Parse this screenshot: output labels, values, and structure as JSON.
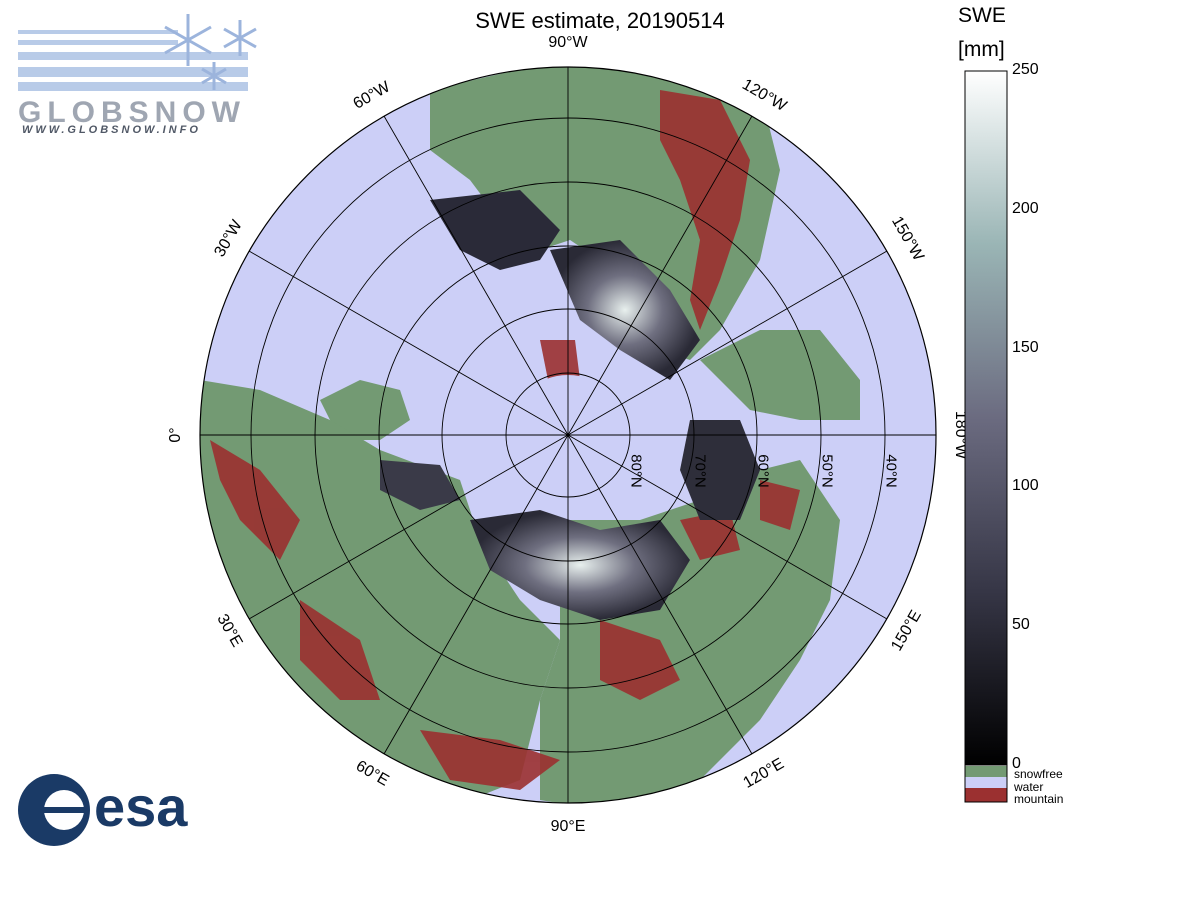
{
  "title": "SWE estimate, 20190514",
  "colorbar": {
    "title_line1": "SWE",
    "title_line2": "[mm]",
    "ticks": [
      "250",
      "200",
      "150",
      "100",
      "50",
      "0"
    ],
    "legend": [
      "snowfree",
      "water",
      "mountain"
    ]
  },
  "map": {
    "projection": "north polar stereographic",
    "longitude_labels": [
      "90°W",
      "120°W",
      "150°W",
      "180°W",
      "150°E",
      "120°E",
      "90°E",
      "60°E",
      "30°E",
      "0°",
      "30°W",
      "60°W"
    ],
    "latitude_labels": [
      "80°N",
      "70°N",
      "60°N",
      "50°N",
      "40°N"
    ],
    "colors": {
      "water": "#cccff7",
      "snowfree": "#739a73",
      "mountain": "#9b3030",
      "snow_low": "#101018",
      "snow_high": "#ffffff"
    }
  },
  "logos": {
    "globsnow_text": "GLOBSNOW",
    "globsnow_url": "WWW.GLOBSNOW.INFO",
    "esa_text": "esa"
  }
}
